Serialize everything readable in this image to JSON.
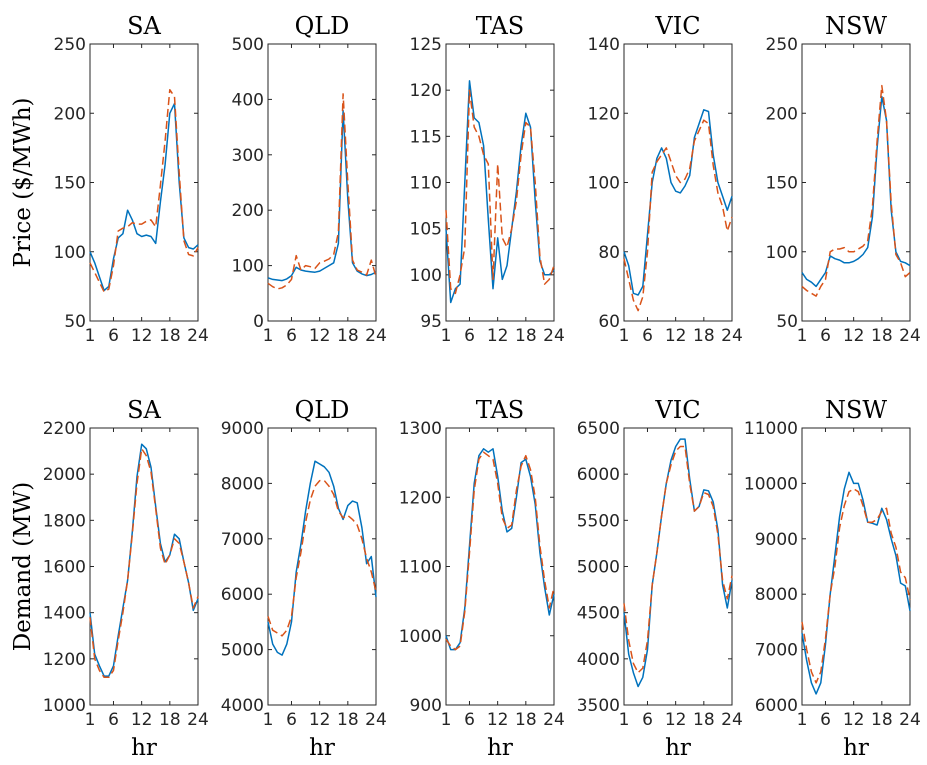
{
  "chart_data": [
    {
      "type": "line",
      "row": 0,
      "col": 0,
      "title": "SA",
      "ylabel": "Price ($/MWh)",
      "xlabel": "",
      "xlim": [
        1,
        24
      ],
      "ylim": [
        50,
        250
      ],
      "xticks": [
        1,
        6,
        12,
        18,
        24
      ],
      "yticks": [
        50,
        100,
        150,
        200,
        250
      ],
      "x": [
        1,
        2,
        3,
        4,
        5,
        6,
        7,
        8,
        9,
        10,
        11,
        12,
        13,
        14,
        15,
        16,
        17,
        18,
        19,
        20,
        21,
        22,
        23,
        24
      ],
      "series": [
        {
          "color": "#0072BD",
          "style": "solid",
          "values": [
            100,
            92,
            82,
            72,
            75,
            95,
            110,
            113,
            130,
            123,
            113,
            111,
            112,
            111,
            106,
            136,
            163,
            200,
            207,
            150,
            110,
            103,
            102,
            105
          ]
        },
        {
          "color": "#D95319",
          "style": "dashed",
          "values": [
            92,
            85,
            78,
            71,
            73,
            90,
            115,
            117,
            118,
            121,
            120,
            120,
            122,
            123,
            118,
            148,
            180,
            217,
            212,
            157,
            108,
            98,
            97,
            103
          ]
        }
      ]
    },
    {
      "type": "line",
      "row": 0,
      "col": 1,
      "title": "QLD",
      "ylabel": "",
      "xlabel": "",
      "xlim": [
        1,
        24
      ],
      "ylim": [
        0,
        500
      ],
      "xticks": [
        1,
        6,
        12,
        18,
        24
      ],
      "yticks": [
        0,
        100,
        200,
        300,
        400,
        500
      ],
      "x": [
        1,
        2,
        3,
        4,
        5,
        6,
        7,
        8,
        9,
        10,
        11,
        12,
        13,
        14,
        15,
        16,
        17,
        18,
        19,
        20,
        21,
        22,
        23,
        24
      ],
      "series": [
        {
          "color": "#0072BD",
          "style": "solid",
          "values": [
            78,
            75,
            74,
            73,
            76,
            82,
            97,
            92,
            90,
            89,
            88,
            90,
            95,
            100,
            105,
            140,
            380,
            220,
            105,
            90,
            85,
            82,
            84,
            88
          ]
        },
        {
          "color": "#D95319",
          "style": "dashed",
          "values": [
            68,
            62,
            58,
            60,
            65,
            75,
            118,
            92,
            100,
            98,
            95,
            105,
            108,
            112,
            120,
            160,
            410,
            250,
            110,
            92,
            88,
            83,
            110,
            80
          ]
        }
      ]
    },
    {
      "type": "line",
      "row": 0,
      "col": 2,
      "title": "TAS",
      "ylabel": "",
      "xlabel": "",
      "xlim": [
        1,
        24
      ],
      "ylim": [
        95,
        125
      ],
      "xticks": [
        1,
        6,
        12,
        18,
        24
      ],
      "yticks": [
        95,
        100,
        105,
        110,
        115,
        120,
        125
      ],
      "x": [
        1,
        2,
        3,
        4,
        5,
        6,
        7,
        8,
        9,
        10,
        11,
        12,
        13,
        14,
        15,
        16,
        17,
        18,
        19,
        20,
        21,
        22,
        23,
        24
      ],
      "series": [
        {
          "color": "#0072BD",
          "style": "solid",
          "values": [
            105,
            97,
            98.5,
            99,
            110,
            121,
            117,
            116.5,
            114,
            106,
            98.5,
            104,
            99.5,
            101,
            105,
            109,
            114,
            117.5,
            116,
            108,
            101.5,
            100,
            100,
            100.5
          ]
        },
        {
          "color": "#D95319",
          "style": "dashed",
          "values": [
            107,
            98.5,
            98,
            100,
            103,
            120,
            116,
            115,
            113,
            112,
            99.5,
            112,
            104,
            103,
            105,
            108,
            113,
            116.5,
            116,
            110,
            102,
            99,
            99.5,
            101
          ]
        }
      ]
    },
    {
      "type": "line",
      "row": 0,
      "col": 3,
      "title": "VIC",
      "ylabel": "",
      "xlabel": "",
      "xlim": [
        1,
        24
      ],
      "ylim": [
        60,
        140
      ],
      "xticks": [
        1,
        6,
        12,
        18,
        24
      ],
      "yticks": [
        60,
        80,
        100,
        120,
        140
      ],
      "x": [
        1,
        2,
        3,
        4,
        5,
        6,
        7,
        8,
        9,
        10,
        11,
        12,
        13,
        14,
        15,
        16,
        17,
        18,
        19,
        20,
        21,
        22,
        23,
        24
      ],
      "series": [
        {
          "color": "#0072BD",
          "style": "solid",
          "values": [
            80,
            76,
            68,
            67.5,
            70,
            85,
            100,
            107,
            110,
            107,
            100,
            97.5,
            97,
            99,
            102,
            113,
            117,
            121,
            120.5,
            108,
            100,
            96,
            92,
            96
          ]
        },
        {
          "color": "#D95319",
          "style": "dashed",
          "values": [
            78,
            72,
            66,
            63,
            67,
            80,
            103,
            106,
            108,
            110,
            106,
            102,
            100,
            101,
            104,
            112,
            115,
            118,
            117,
            105,
            97,
            93,
            86,
            90
          ]
        }
      ]
    },
    {
      "type": "line",
      "row": 0,
      "col": 4,
      "title": "NSW",
      "ylabel": "",
      "xlabel": "",
      "xlim": [
        1,
        24
      ],
      "ylim": [
        50,
        250
      ],
      "xticks": [
        1,
        6,
        12,
        18,
        24
      ],
      "yticks": [
        50,
        100,
        150,
        200,
        250
      ],
      "x": [
        1,
        2,
        3,
        4,
        5,
        6,
        7,
        8,
        9,
        10,
        11,
        12,
        13,
        14,
        15,
        16,
        17,
        18,
        19,
        20,
        21,
        22,
        23,
        24
      ],
      "series": [
        {
          "color": "#0072BD",
          "style": "solid",
          "values": [
            85,
            80,
            78,
            75,
            80,
            85,
            97,
            95,
            94,
            92,
            92,
            93,
            95,
            98,
            103,
            125,
            175,
            212,
            195,
            130,
            100,
            93,
            92,
            90
          ]
        },
        {
          "color": "#D95319",
          "style": "dashed",
          "values": [
            75,
            72,
            70,
            68,
            75,
            80,
            100,
            102,
            102,
            103,
            100,
            100,
            102,
            104,
            108,
            132,
            180,
            220,
            195,
            135,
            98,
            92,
            82,
            85
          ]
        }
      ]
    },
    {
      "type": "line",
      "row": 1,
      "col": 0,
      "title": "SA",
      "ylabel": "Demand (MW)",
      "xlabel": "hr",
      "xlim": [
        1,
        24
      ],
      "ylim": [
        1000,
        2200
      ],
      "xticks": [
        1,
        6,
        12,
        18,
        24
      ],
      "yticks": [
        1000,
        1200,
        1400,
        1600,
        1800,
        2000,
        2200
      ],
      "x": [
        1,
        2,
        3,
        4,
        5,
        6,
        7,
        8,
        9,
        10,
        11,
        12,
        13,
        14,
        15,
        16,
        17,
        18,
        19,
        20,
        21,
        22,
        23,
        24
      ],
      "series": [
        {
          "color": "#0072BD",
          "style": "solid",
          "values": [
            1400,
            1220,
            1170,
            1125,
            1125,
            1170,
            1300,
            1420,
            1540,
            1750,
            1990,
            2130,
            2110,
            2030,
            1860,
            1700,
            1620,
            1650,
            1740,
            1720,
            1620,
            1530,
            1410,
            1460
          ]
        },
        {
          "color": "#D95319",
          "style": "dashed",
          "values": [
            1380,
            1200,
            1150,
            1120,
            1120,
            1150,
            1280,
            1400,
            1540,
            1740,
            1960,
            2110,
            2080,
            2010,
            1850,
            1680,
            1610,
            1650,
            1720,
            1700,
            1620,
            1530,
            1420,
            1470
          ]
        }
      ]
    },
    {
      "type": "line",
      "row": 1,
      "col": 1,
      "title": "QLD",
      "ylabel": "",
      "xlabel": "hr",
      "xlim": [
        1,
        24
      ],
      "ylim": [
        4000,
        9000
      ],
      "xticks": [
        1,
        6,
        12,
        18,
        24
      ],
      "yticks": [
        4000,
        5000,
        6000,
        7000,
        8000,
        9000
      ],
      "x": [
        1,
        2,
        3,
        4,
        5,
        6,
        7,
        8,
        9,
        10,
        11,
        12,
        13,
        14,
        15,
        16,
        17,
        18,
        19,
        20,
        21,
        22,
        23,
        24
      ],
      "series": [
        {
          "color": "#0072BD",
          "style": "solid",
          "values": [
            5500,
            5100,
            4950,
            4900,
            5100,
            5500,
            6400,
            6900,
            7500,
            8000,
            8400,
            8350,
            8300,
            8200,
            7950,
            7550,
            7350,
            7600,
            7680,
            7650,
            7200,
            6550,
            6680,
            5950
          ]
        },
        {
          "color": "#D95319",
          "style": "dashed",
          "values": [
            5600,
            5350,
            5300,
            5250,
            5350,
            5600,
            6300,
            6750,
            7300,
            7700,
            7950,
            8050,
            8050,
            7950,
            7800,
            7500,
            7380,
            7420,
            7350,
            7250,
            7000,
            6650,
            6400,
            6050
          ]
        }
      ]
    },
    {
      "type": "line",
      "row": 1,
      "col": 2,
      "title": "TAS",
      "ylabel": "",
      "xlabel": "hr",
      "xlim": [
        1,
        24
      ],
      "ylim": [
        900,
        1300
      ],
      "xticks": [
        1,
        6,
        12,
        18,
        24
      ],
      "yticks": [
        900,
        1000,
        1100,
        1200,
        1300
      ],
      "x": [
        1,
        2,
        3,
        4,
        5,
        6,
        7,
        8,
        9,
        10,
        11,
        12,
        13,
        14,
        15,
        16,
        17,
        18,
        19,
        20,
        21,
        22,
        23,
        24
      ],
      "series": [
        {
          "color": "#0072BD",
          "style": "solid",
          "values": [
            1000,
            980,
            980,
            990,
            1040,
            1130,
            1220,
            1260,
            1270,
            1265,
            1270,
            1230,
            1180,
            1150,
            1155,
            1200,
            1250,
            1255,
            1230,
            1190,
            1120,
            1070,
            1030,
            1060
          ]
        },
        {
          "color": "#D95319",
          "style": "dashed",
          "values": [
            995,
            985,
            980,
            985,
            1035,
            1120,
            1210,
            1255,
            1265,
            1260,
            1255,
            1220,
            1170,
            1155,
            1160,
            1210,
            1245,
            1260,
            1240,
            1200,
            1130,
            1080,
            1040,
            1070
          ]
        }
      ]
    },
    {
      "type": "line",
      "row": 1,
      "col": 3,
      "title": "VIC",
      "ylabel": "",
      "xlabel": "hr",
      "xlim": [
        1,
        24
      ],
      "ylim": [
        3500,
        6500
      ],
      "xticks": [
        1,
        6,
        12,
        18,
        24
      ],
      "yticks": [
        3500,
        4000,
        4500,
        5000,
        5500,
        6000,
        6500
      ],
      "x": [
        1,
        2,
        3,
        4,
        5,
        6,
        7,
        8,
        9,
        10,
        11,
        12,
        13,
        14,
        15,
        16,
        17,
        18,
        19,
        20,
        21,
        22,
        23,
        24
      ],
      "series": [
        {
          "color": "#0072BD",
          "style": "solid",
          "values": [
            4500,
            4050,
            3850,
            3700,
            3800,
            4100,
            4800,
            5150,
            5550,
            5900,
            6150,
            6300,
            6380,
            6380,
            5950,
            5600,
            5650,
            5830,
            5820,
            5700,
            5400,
            4800,
            4550,
            4850
          ]
        },
        {
          "color": "#D95319",
          "style": "dashed",
          "values": [
            4600,
            4200,
            3950,
            3850,
            3900,
            4200,
            4800,
            5150,
            5550,
            5900,
            6100,
            6250,
            6300,
            6300,
            5900,
            5600,
            5650,
            5800,
            5780,
            5650,
            5350,
            4850,
            4650,
            4900
          ]
        }
      ]
    },
    {
      "type": "line",
      "row": 1,
      "col": 4,
      "title": "NSW",
      "ylabel": "",
      "xlabel": "hr",
      "xlim": [
        1,
        24
      ],
      "ylim": [
        6000,
        11000
      ],
      "xticks": [
        1,
        6,
        12,
        18,
        24
      ],
      "yticks": [
        6000,
        7000,
        8000,
        9000,
        10000,
        11000
      ],
      "x": [
        1,
        2,
        3,
        4,
        5,
        6,
        7,
        8,
        9,
        10,
        11,
        12,
        13,
        14,
        15,
        16,
        17,
        18,
        19,
        20,
        21,
        22,
        23,
        24
      ],
      "series": [
        {
          "color": "#0072BD",
          "style": "solid",
          "values": [
            7300,
            6800,
            6400,
            6200,
            6400,
            7100,
            8000,
            8700,
            9400,
            9900,
            10200,
            10000,
            10000,
            9700,
            9300,
            9280,
            9250,
            9550,
            9350,
            9000,
            8700,
            8200,
            8150,
            7700
          ]
        },
        {
          "color": "#D95319",
          "style": "dashed",
          "values": [
            7500,
            7000,
            6600,
            6400,
            6600,
            7200,
            8000,
            8500,
            9200,
            9600,
            9850,
            9900,
            9850,
            9600,
            9300,
            9300,
            9350,
            9500,
            9550,
            9100,
            8850,
            8400,
            8300,
            7900
          ]
        }
      ]
    }
  ]
}
